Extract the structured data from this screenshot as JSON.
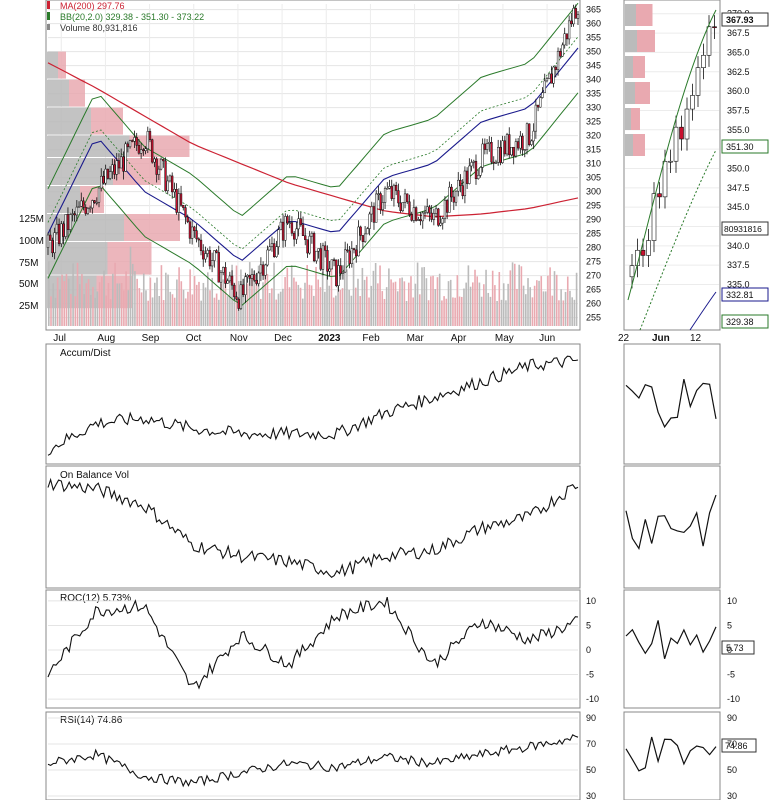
{
  "price_panel": {
    "legend": {
      "ma200": "MA(200) 297.76",
      "bb": "BB(20,2.0) 329.38 - 351.30 - 373.22",
      "volume": "Volume 80,931,816"
    },
    "colors": {
      "ma200": "#cc2233",
      "bb_band": "#2a7a2a",
      "ma50": "#1a1a8c",
      "up_volume": "#aaaaaa",
      "down_volume": "#e9a9b0",
      "price_candle": "#111111"
    }
  },
  "detail_panel": {
    "price_tag_last": "367.93",
    "price_tag_upper": "351.30",
    "price_tag_mid": "332.81",
    "price_tag_lower": "329.38",
    "volume_tag": "80931816",
    "axis_labels": [
      "22",
      "Jun",
      "12"
    ]
  },
  "indicators": {
    "accum_dist": "Accum/Dist",
    "obv": "On Balance Vol",
    "roc": "ROC(12) 5.73%",
    "roc_tag": "5.73",
    "rsi": "RSI(14) 74.86",
    "rsi_tag": "74.86"
  },
  "chart_data": [
    {
      "type": "line",
      "title": "",
      "months": [
        "Jul",
        "Aug",
        "Sep",
        "Oct",
        "Nov",
        "Dec",
        "2023",
        "Feb",
        "Mar",
        "Apr",
        "May",
        "Jun"
      ],
      "price_axis": [
        255,
        260,
        265,
        270,
        275,
        280,
        285,
        290,
        295,
        300,
        305,
        310,
        315,
        320,
        325,
        330,
        335,
        340,
        345,
        350,
        355,
        360,
        365
      ],
      "volume_axis": [
        "25M",
        "50M",
        "75M",
        "100M",
        "125M"
      ],
      "ylim": [
        252,
        367
      ],
      "series": [
        {
          "name": "MA(200)",
          "values": [
            346,
            337,
            327,
            317,
            310,
            303,
            298,
            293,
            291,
            292,
            294,
            297.76
          ]
        },
        {
          "name": "BB(20,2.0)",
          "values": [
            285,
            320,
            300,
            290,
            275,
            290,
            285,
            305,
            310,
            325,
            330,
            351.3
          ]
        }
      ],
      "price_close": [
        280,
        300,
        320,
        285,
        262,
        290,
        270,
        300,
        290,
        312,
        320,
        367.93
      ]
    },
    {
      "type": "line",
      "title": "",
      "series": [
        {
          "name": "Accum/Dist",
          "values": [
            3,
            8,
            9,
            7,
            6,
            6,
            6,
            10,
            13,
            16,
            19,
            20
          ]
        }
      ]
    },
    {
      "type": "line",
      "title": "",
      "series": [
        {
          "name": "On Balance Vol",
          "values": [
            14,
            13,
            10,
            3,
            1,
            0,
            -2,
            1,
            2,
            6,
            8,
            14
          ]
        }
      ]
    },
    {
      "type": "line",
      "title": "",
      "y_ticks": [
        10,
        5,
        0,
        -5,
        -10
      ],
      "ylim": [
        -11,
        11
      ],
      "series": [
        {
          "name": "ROC(12)",
          "values": [
            -5,
            8,
            9,
            -8,
            3,
            -3,
            7,
            10,
            -3,
            6,
            2,
            5.73
          ]
        }
      ]
    },
    {
      "type": "line",
      "title": "",
      "y_ticks": [
        90,
        70,
        50,
        30
      ],
      "ylim": [
        30,
        90
      ],
      "series": [
        {
          "name": "RSI(14)",
          "values": [
            55,
            62,
            45,
            40,
            48,
            55,
            52,
            60,
            55,
            62,
            68,
            74.86
          ]
        }
      ]
    }
  ]
}
